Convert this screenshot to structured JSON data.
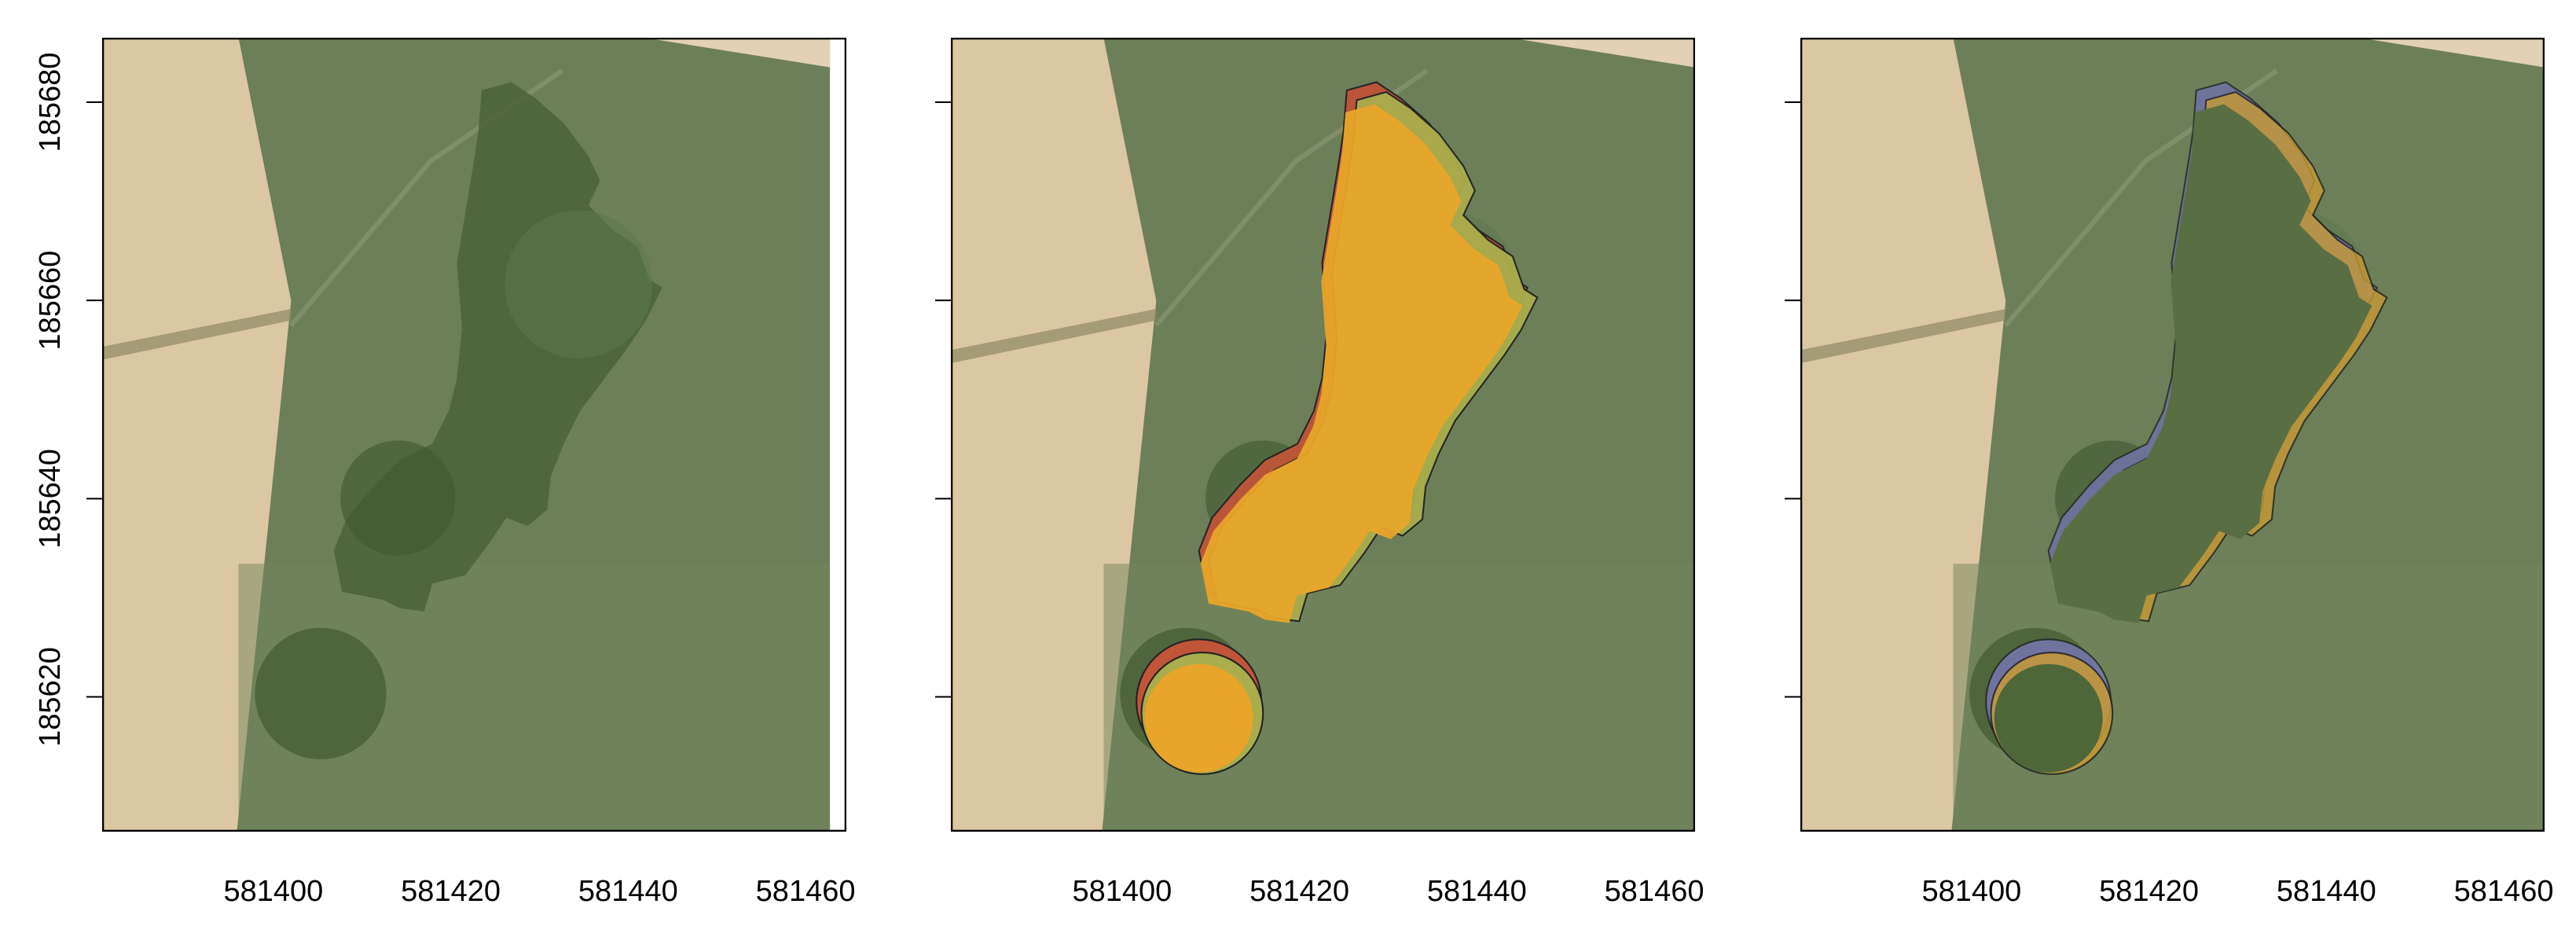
{
  "xlim": [
    581380.7,
    581464.6
  ],
  "ylim": [
    185606.4,
    185686.5
  ],
  "xticks": [
    581400,
    581420,
    581440,
    581460
  ],
  "yticks": [
    185620,
    185640,
    185660,
    185680
  ]
}
